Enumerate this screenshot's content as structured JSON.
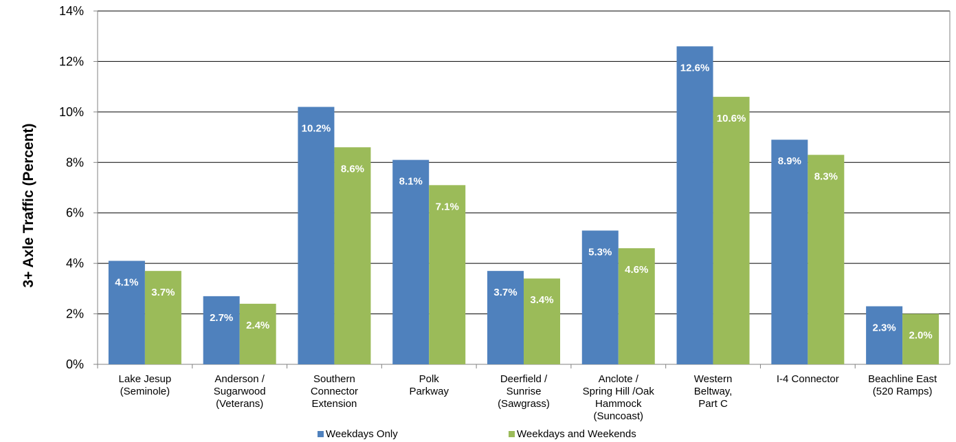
{
  "chart_data": {
    "type": "bar",
    "title": "",
    "xlabel": "",
    "ylabel": "3+ Axle Traffic (Percent)",
    "ylim": [
      0,
      14
    ],
    "y_ticks": [
      "0%",
      "2%",
      "4%",
      "6%",
      "8%",
      "10%",
      "12%",
      "14%"
    ],
    "grid": true,
    "legend_position": "bottom",
    "categories": [
      [
        "Lake Jesup",
        "(Seminole)"
      ],
      [
        "Anderson /",
        "Sugarwood",
        "(Veterans)"
      ],
      [
        "Southern",
        "Connector",
        "Extension"
      ],
      [
        "Polk",
        "Parkway"
      ],
      [
        "Deerfield /",
        "Sunrise",
        "(Sawgrass)"
      ],
      [
        "Anclote /",
        "Spring Hill /Oak",
        "Hammock",
        "(Suncoast)"
      ],
      [
        "Western",
        "Beltway,",
        "Part C"
      ],
      [
        "I-4 Connector"
      ],
      [
        "Beachline East",
        "(520 Ramps)"
      ]
    ],
    "series": [
      {
        "name": "Weekdays Only",
        "color": "#4F81BD",
        "values": [
          4.1,
          2.7,
          10.2,
          8.1,
          3.7,
          5.3,
          12.6,
          8.9,
          2.3
        ],
        "labels": [
          "4.1%",
          "2.7%",
          "10.2%",
          "8.1%",
          "3.7%",
          "5.3%",
          "12.6%",
          "8.9%",
          "2.3%"
        ]
      },
      {
        "name": "Weekdays and Weekends",
        "color": "#9BBB59",
        "values": [
          3.7,
          2.4,
          8.6,
          7.1,
          3.4,
          4.6,
          10.6,
          8.3,
          2.0
        ],
        "labels": [
          "3.7%",
          "2.4%",
          "8.6%",
          "7.1%",
          "3.4%",
          "4.6%",
          "10.6%",
          "8.3%",
          "2.0%"
        ]
      }
    ]
  }
}
